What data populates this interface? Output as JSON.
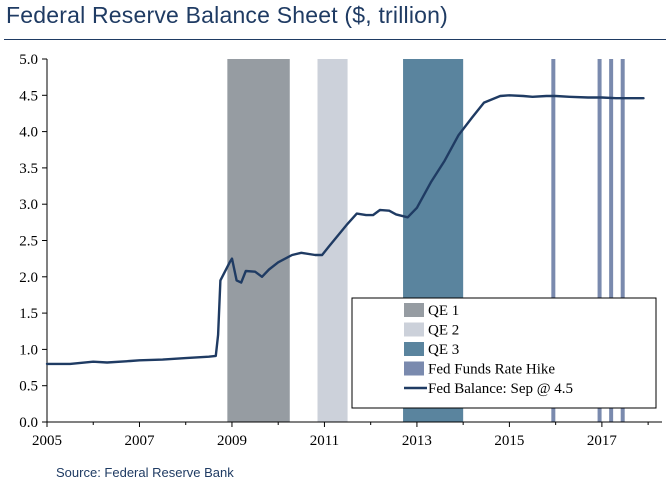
{
  "header": {
    "title": "Federal Reserve Balance Sheet ($, trillion)"
  },
  "footer": {
    "source": "Source: Federal Reserve Bank"
  },
  "colors": {
    "title": "#1f3b63",
    "line": "#1f3b63",
    "qe1": "#969ca2",
    "qe2": "#ccd1da",
    "qe3": "#5a849e",
    "hike": "#7a8aae"
  },
  "chart_data": {
    "type": "line",
    "xlim": [
      2005,
      2018.3
    ],
    "ylim": [
      0,
      5.0
    ],
    "x_ticks": [
      2005,
      2007,
      2009,
      2011,
      2013,
      2015,
      2017
    ],
    "x_tick_labels": [
      "2005",
      "2007",
      "2009",
      "2011",
      "2013",
      "2015",
      "2017"
    ],
    "y_ticks": [
      0,
      0.5,
      1.0,
      1.5,
      2.0,
      2.5,
      3.0,
      3.5,
      4.0,
      4.5,
      5.0
    ],
    "y_tick_labels": [
      "0.0",
      "0.5",
      "1.0",
      "1.5",
      "2.0",
      "2.5",
      "3.0",
      "3.5",
      "4.0",
      "4.5",
      "5.0"
    ],
    "grid": false,
    "legend_position": "bottom-right",
    "bands": [
      {
        "name": "QE 1",
        "start": 2008.9,
        "end": 2010.25,
        "color": "#969ca2"
      },
      {
        "name": "QE 2",
        "start": 2010.85,
        "end": 2011.5,
        "color": "#ccd1da"
      },
      {
        "name": "QE 3",
        "start": 2012.7,
        "end": 2014.0,
        "color": "#5a849e"
      }
    ],
    "rate_hikes": {
      "name": "Fed Funds Rate Hike",
      "dates": [
        2015.95,
        2016.95,
        2017.2,
        2017.45
      ],
      "color": "#7a8aae"
    },
    "series": [
      {
        "name": "Fed Balance: Sep @ 4.5",
        "color": "#1f3b63",
        "points": [
          [
            2005.0,
            0.8
          ],
          [
            2005.5,
            0.8
          ],
          [
            2006.0,
            0.83
          ],
          [
            2006.3,
            0.82
          ],
          [
            2006.8,
            0.84
          ],
          [
            2007.0,
            0.85
          ],
          [
            2007.5,
            0.86
          ],
          [
            2008.0,
            0.88
          ],
          [
            2008.5,
            0.9
          ],
          [
            2008.65,
            0.91
          ],
          [
            2008.7,
            1.2
          ],
          [
            2008.75,
            1.95
          ],
          [
            2008.95,
            2.2
          ],
          [
            2009.0,
            2.25
          ],
          [
            2009.1,
            1.95
          ],
          [
            2009.2,
            1.92
          ],
          [
            2009.3,
            2.08
          ],
          [
            2009.5,
            2.07
          ],
          [
            2009.65,
            2.0
          ],
          [
            2009.8,
            2.1
          ],
          [
            2010.0,
            2.2
          ],
          [
            2010.3,
            2.3
          ],
          [
            2010.5,
            2.33
          ],
          [
            2010.8,
            2.3
          ],
          [
            2010.95,
            2.3
          ],
          [
            2011.1,
            2.42
          ],
          [
            2011.5,
            2.73
          ],
          [
            2011.7,
            2.87
          ],
          [
            2011.9,
            2.85
          ],
          [
            2012.05,
            2.85
          ],
          [
            2012.2,
            2.92
          ],
          [
            2012.4,
            2.91
          ],
          [
            2012.55,
            2.86
          ],
          [
            2012.8,
            2.82
          ],
          [
            2013.0,
            2.95
          ],
          [
            2013.3,
            3.3
          ],
          [
            2013.6,
            3.6
          ],
          [
            2013.9,
            3.95
          ],
          [
            2014.2,
            4.2
          ],
          [
            2014.45,
            4.4
          ],
          [
            2014.8,
            4.49
          ],
          [
            2015.0,
            4.5
          ],
          [
            2015.3,
            4.49
          ],
          [
            2015.5,
            4.48
          ],
          [
            2015.8,
            4.49
          ],
          [
            2016.0,
            4.49
          ],
          [
            2016.3,
            4.48
          ],
          [
            2016.7,
            4.47
          ],
          [
            2017.0,
            4.47
          ],
          [
            2017.3,
            4.46
          ],
          [
            2017.6,
            4.46
          ],
          [
            2017.9,
            4.46
          ]
        ]
      }
    ],
    "legend_entries": [
      {
        "label": "QE 1",
        "kind": "box",
        "color": "#969ca2"
      },
      {
        "label": "QE 2",
        "kind": "box",
        "color": "#ccd1da"
      },
      {
        "label": "QE 3",
        "kind": "box",
        "color": "#5a849e"
      },
      {
        "label": "Fed Funds Rate Hike",
        "kind": "box",
        "color": "#7a8aae"
      },
      {
        "label": "Fed Balance: Sep @ 4.5",
        "kind": "line",
        "color": "#1f3b63"
      }
    ]
  }
}
